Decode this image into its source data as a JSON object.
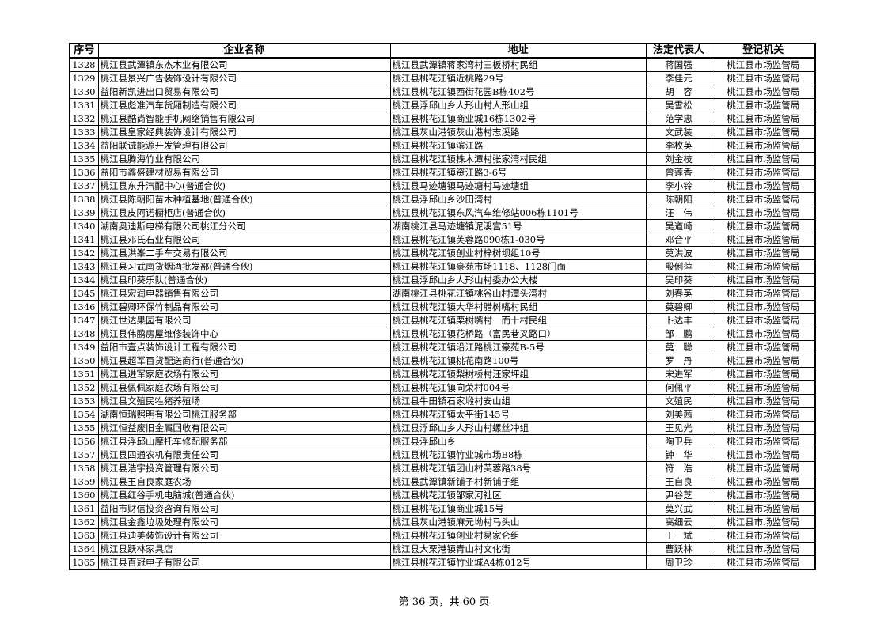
{
  "table": {
    "headers": [
      "序号",
      "企业名称",
      "地址",
      "法定代表人",
      "登记机关"
    ],
    "rows": [
      [
        "1328",
        "桃江县武潭镇东杰木业有限公司",
        "桃江县武潭镇蒋家湾村三板桥村民组",
        "蒋国强",
        "桃江县市场监管局"
      ],
      [
        "1329",
        "桃江县景兴广告装饰设计有限公司",
        "桃江县桃花江镇近桃路29号",
        "李佳元",
        "桃江县市场监管局"
      ],
      [
        "1330",
        "益阳新凯进出口贸易有限公司",
        "桃江县桃花江镇西街花园B栋402号",
        "胡　容",
        "桃江县市场监管局"
      ],
      [
        "1331",
        "桃江县彪准汽车货厢制造有限公司",
        "桃江县浮邱山乡人形山村人形山组",
        "吴雪松",
        "桃江县市场监管局"
      ],
      [
        "1332",
        "桃江县酷尚智能手机网络销售有限公司",
        "桃江县桃花江镇商业城16栋1302号",
        "范学忠",
        "桃江县市场监管局"
      ],
      [
        "1333",
        "桃江县皇家经典装饰设计有限公司",
        "桃江县灰山港镇灰山港村志溪路",
        "文武装",
        "桃江县市场监管局"
      ],
      [
        "1334",
        "益阳联诚能源开发管理有限公司",
        "桃江县桃花江镇滨江路",
        "李枚英",
        "桃江县市场监管局"
      ],
      [
        "1335",
        "桃江县腾海竹业有限公司",
        "桃江县桃花江镇株木潭村张家湾村民组",
        "刘金枝",
        "桃江县市场监管局"
      ],
      [
        "1336",
        "益阳市鑫盛建材贸易有限公司",
        "桃江县桃花江镇资江路3-6号",
        "曾莲香",
        "桃江县市场监管局"
      ],
      [
        "1337",
        "桃江县东升汽配中心(普通合伙)",
        "桃江县马迹塘镇马迹塘村马迹塘组",
        "李小铃",
        "桃江县市场监管局"
      ],
      [
        "1338",
        "桃江县陈朝阳苗木种植基地(普通合伙)",
        "桃江县浮邱山乡沙田湾村",
        "陈朝阳",
        "桃江县市场监管局"
      ],
      [
        "1339",
        "桃江县皮阿诺橱柜店(普通合伙)",
        "桃江县桃花江镇东风汽车维修站006栋1101号",
        "汪　伟",
        "桃江县市场监管局"
      ],
      [
        "1340",
        "湖南奥迪斯电梯有限公司桃江分公司",
        "湖南桃江县马迹塘镇泥溪宫51号",
        "吴道崎",
        "桃江县市场监管局"
      ],
      [
        "1341",
        "桃江县邓氏石业有限公司",
        "桃江县桃花江镇芙蓉路090栋1-030号",
        "邓合平",
        "桃江县市场监管局"
      ],
      [
        "1342",
        "桃江县洪峯二手车交易有限公司",
        "桃江县桃花江镇创业村梓树坝组10号",
        "莫洪波",
        "桃江县市场监管局"
      ],
      [
        "1343",
        "桃江县习武南货烟酒批发部(普通合伙)",
        "桃江县桃花江镇豪苑市场1118、1128门面",
        "殷俐萍",
        "桃江县市场监管局"
      ],
      [
        "1344",
        "桃江县印葵乐队(普通合伙)",
        "桃江县浮邱山乡人形山村委办公大楼",
        "吴印葵",
        "桃江县市场监管局"
      ],
      [
        "1345",
        "桃江县宏润电器销售有限公司",
        "湖南桃江县桃花江镇桃谷山村潭头湾村",
        "刘春英",
        "桃江县市场监管局"
      ],
      [
        "1346",
        "桃江碧卿环保竹制品有限公司",
        "桃江县桃花江镇大华村腊树嘴村民组",
        "莫碧卿",
        "桃江县市场监管局"
      ],
      [
        "1347",
        "桃江世达果园有限公司",
        "桃江县桃花江镇栗树嘴村一而十村民组",
        "卜达丰",
        "桃江县市场监管局"
      ],
      [
        "1348",
        "桃江县伟鹏房屋维修装饰中心",
        "桃江县桃花江镇花桥路（富民巷叉路口）",
        "邹　鹏",
        "桃江县市场监管局"
      ],
      [
        "1349",
        "益阳市壹点装饰设计工程有限公司",
        "桃江县桃花江镇沿江路桃江豪苑B-5号",
        "莫　聪",
        "桃江县市场监管局"
      ],
      [
        "1350",
        "桃江县超军百货配送商行(普通合伙)",
        "桃江县桃花江镇桃花南路100号",
        "罗　丹",
        "桃江县市场监管局"
      ],
      [
        "1351",
        "桃江县进军家庭农场有限公司",
        "桃江县桃花江镇梨树桥村汪家坪组",
        "宋进军",
        "桃江县市场监管局"
      ],
      [
        "1352",
        "桃江县佩佩家庭农场有限公司",
        "桃江县桃花江镇向荣村004号",
        "何佩平",
        "桃江县市场监管局"
      ],
      [
        "1353",
        "桃江县文殖民牲猪养殖场",
        "桃江县牛田镇石家塅村安山组",
        "文殖民",
        "桃江县市场监管局"
      ],
      [
        "1354",
        "湖南恒瑞照明有限公司桃江服务部",
        "桃江县桃花江镇太平街145号",
        "刘美茜",
        "桃江县市场监管局"
      ],
      [
        "1355",
        "桃江恒益废旧金属回收有限公司",
        "桃江县浮邱山乡人形山村螺丝冲组",
        "王见光",
        "桃江县市场监管局"
      ],
      [
        "1356",
        "桃江县浮邱山摩托车修配服务部",
        "桃江县浮邱山乡",
        "陶卫兵",
        "桃江县市场监管局"
      ],
      [
        "1357",
        "桃江县四通农机有限责任公司",
        "桃江县桃花江镇竹业城市场B8栋",
        "钟　华",
        "桃江县市场监管局"
      ],
      [
        "1358",
        "桃江县浩宇投资管理有限公司",
        "桃江县桃花江镇团山村芙蓉路38号",
        "符　浩",
        "桃江县市场监管局"
      ],
      [
        "1359",
        "桃江县王自良家庭农场",
        "桃江县武潭镇新铺子村新铺子组",
        "王自良",
        "桃江县市场监管局"
      ],
      [
        "1360",
        "桃江县红谷手机电脑城(普通合伙)",
        "桃江县桃花江镇邹家河社区",
        "尹谷芝",
        "桃江县市场监管局"
      ],
      [
        "1361",
        "益阳市财信投资咨询有限公司",
        "桃江县桃花江镇商业城15号",
        "莫兴武",
        "桃江县市场监管局"
      ],
      [
        "1362",
        "桃江县金鑫垃圾处理有限公司",
        "桃江县灰山港镇麻元坳村马头山",
        "高细云",
        "桃江县市场监管局"
      ],
      [
        "1363",
        "桃江县迪美装饰设计有限公司",
        "桃江县桃花江镇创业村易家仑组",
        "王　斌",
        "桃江县市场监管局"
      ],
      [
        "1364",
        "桃江县跃林家具店",
        "桃江县大栗港镇青山村文化街",
        "曹跃林",
        "桃江县市场监管局"
      ],
      [
        "1365",
        "桃江县百冠电子有限公司",
        "桃江县桃花江镇竹业城A4栋012号",
        "周卫珍",
        "桃江县市场监管局"
      ]
    ]
  },
  "footer": {
    "page_text": "第 36 页，共 60 页"
  }
}
